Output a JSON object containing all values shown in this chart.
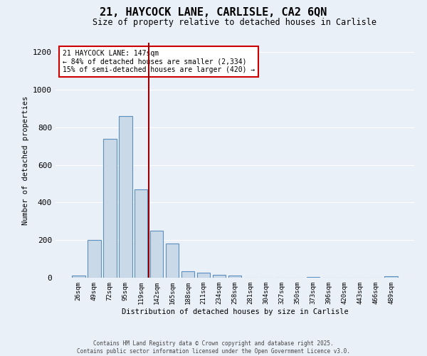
{
  "title_line1": "21, HAYCOCK LANE, CARLISLE, CA2 6QN",
  "title_line2": "Size of property relative to detached houses in Carlisle",
  "xlabel": "Distribution of detached houses by size in Carlisle",
  "ylabel": "Number of detached properties",
  "bins": [
    "26sqm",
    "49sqm",
    "72sqm",
    "95sqm",
    "119sqm",
    "142sqm",
    "165sqm",
    "188sqm",
    "211sqm",
    "234sqm",
    "258sqm",
    "281sqm",
    "304sqm",
    "327sqm",
    "350sqm",
    "373sqm",
    "396sqm",
    "420sqm",
    "443sqm",
    "466sqm",
    "489sqm"
  ],
  "values": [
    10,
    200,
    740,
    860,
    470,
    250,
    180,
    35,
    25,
    15,
    12,
    0,
    0,
    0,
    0,
    5,
    0,
    0,
    0,
    0,
    7
  ],
  "bar_color": "#c9d9e8",
  "bar_edge_color": "#5a8fc0",
  "highlight_line_color": "#990000",
  "annotation_text": "21 HAYCOCK LANE: 147sqm\n← 84% of detached houses are smaller (2,334)\n15% of semi-detached houses are larger (420) →",
  "annotation_box_color": "#ffffff",
  "annotation_box_edge_color": "#cc0000",
  "ylim": [
    0,
    1250
  ],
  "yticks": [
    0,
    200,
    400,
    600,
    800,
    1000,
    1200
  ],
  "background_color": "#eaf0f8",
  "grid_color": "#ffffff",
  "footer_line1": "Contains HM Land Registry data © Crown copyright and database right 2025.",
  "footer_line2": "Contains public sector information licensed under the Open Government Licence v3.0."
}
